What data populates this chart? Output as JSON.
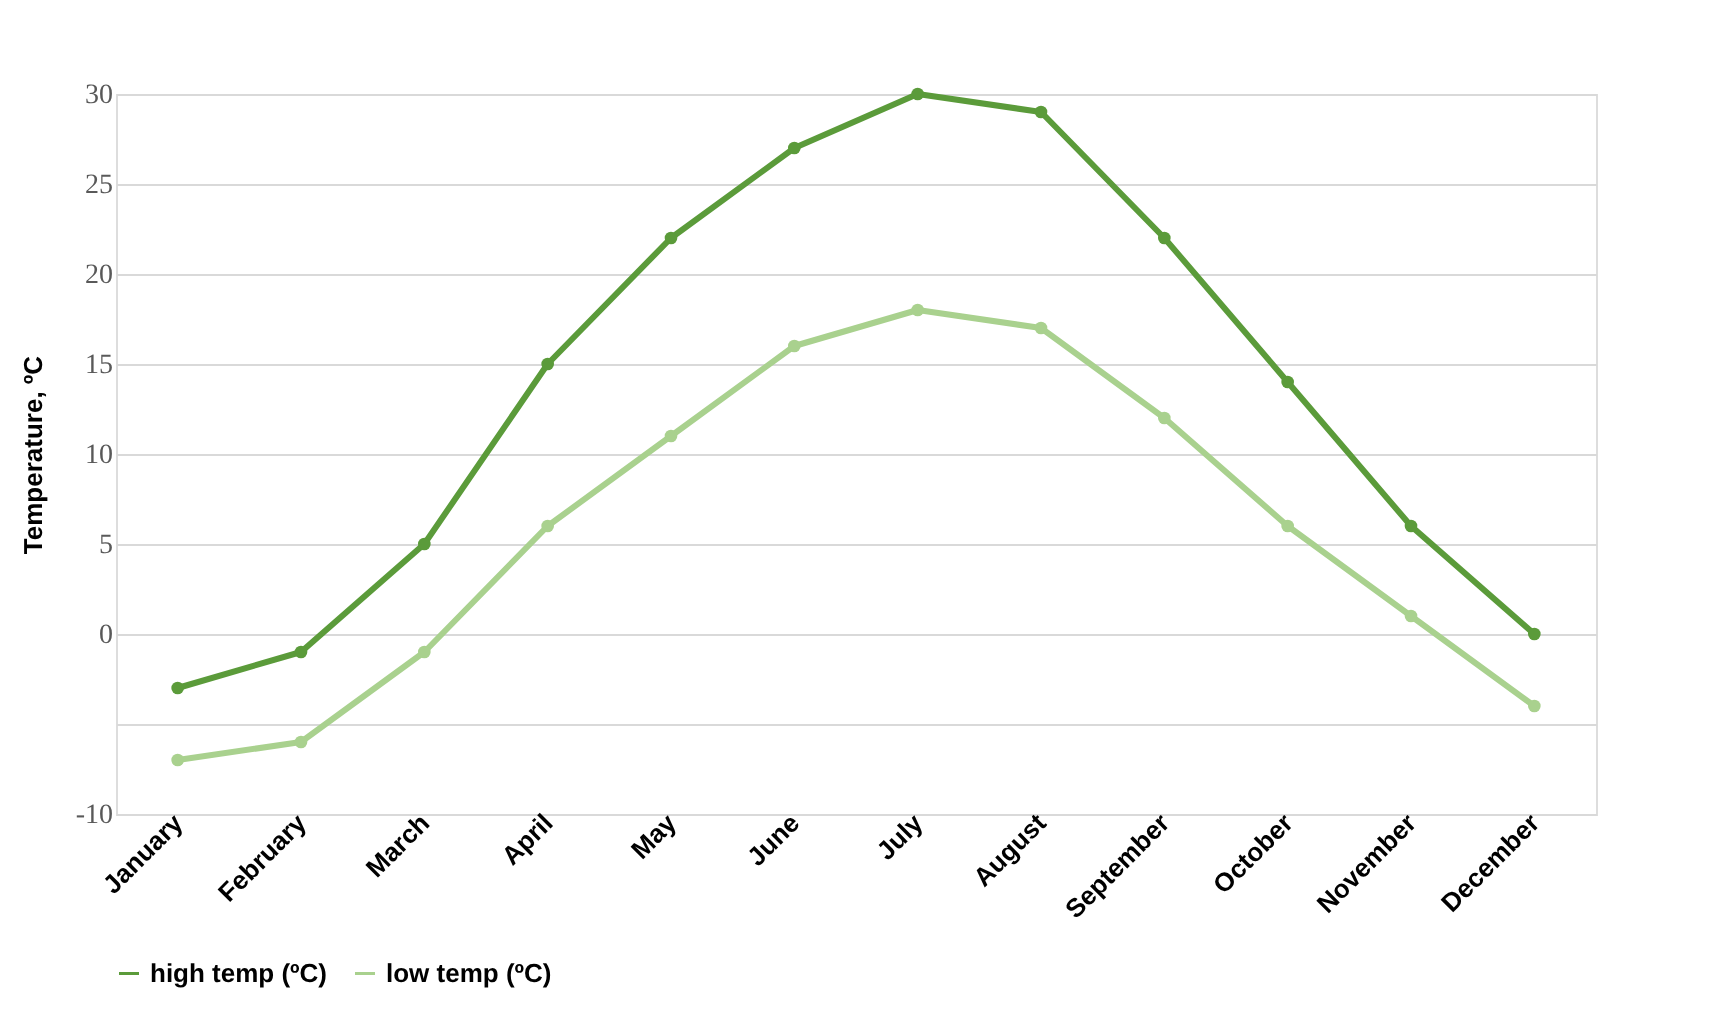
{
  "chart_data": {
    "type": "line",
    "ylabel": "Temperature, ºC",
    "categories": [
      "January",
      "February",
      "March",
      "April",
      "May",
      "June",
      "July",
      "August",
      "September",
      "October",
      "November",
      "December"
    ],
    "series": [
      {
        "name": "high temp (ºC)",
        "color": "#5b9b3a",
        "values": [
          -3,
          -1,
          5,
          15,
          22,
          27,
          30,
          29,
          22,
          14,
          6,
          0
        ]
      },
      {
        "name": "low temp (ºC)",
        "color": "#a9d18e",
        "values": [
          -7,
          -6,
          -1,
          6,
          11,
          16,
          18,
          17,
          12,
          6,
          1,
          -4
        ]
      }
    ],
    "ylim": [
      -10,
      30
    ],
    "yticks": [
      -10,
      {
        "value": -5,
        "label": null
      },
      0,
      5,
      10,
      15,
      20,
      25,
      30
    ],
    "grid": "y",
    "legend": "bottom",
    "marker": "circle",
    "line_style": "solid"
  }
}
